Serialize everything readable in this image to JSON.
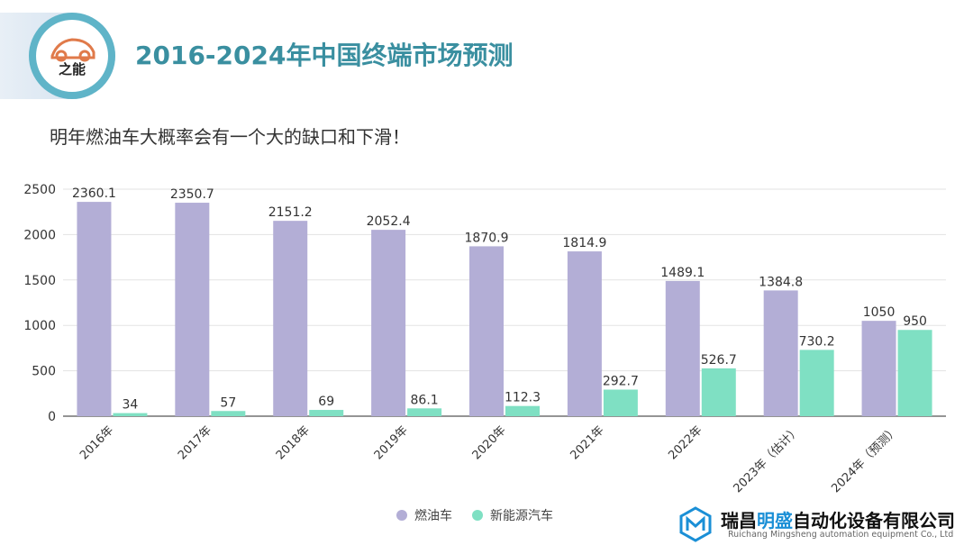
{
  "header": {
    "logo_text": "之能",
    "title": "2016-2024年中国终端市场预测"
  },
  "subtitle": "明年燃油车大概率会有一个大的缺口和下滑！",
  "colors": {
    "fuel": "#b3aed6",
    "nev": "#7fe0c3",
    "title": "#3a8fa0"
  },
  "chart_data": {
    "type": "bar",
    "categories": [
      "2016年",
      "2017年",
      "2018年",
      "2019年",
      "2020年",
      "2021年",
      "2022年",
      "2023年（估计）",
      "2024年（预测）"
    ],
    "series": [
      {
        "name": "燃油车",
        "values": [
          2360.1,
          2350.7,
          2151.2,
          2052.4,
          1870.9,
          1814.9,
          1489.1,
          1384.8,
          1050
        ]
      },
      {
        "name": "新能源汽车",
        "values": [
          34,
          57,
          69,
          86.1,
          112.3,
          292.7,
          526.7,
          730.2,
          950
        ]
      }
    ],
    "value_labels": [
      [
        "2360.1",
        "2350.7",
        "2151.2",
        "2052.4",
        "1870.9",
        "1814.9",
        "1489.1",
        "1384.8",
        "1050"
      ],
      [
        "34",
        "57",
        "69",
        "86.1",
        "112.3",
        "292.7",
        "526.7",
        "730.2",
        "950"
      ]
    ],
    "yticks": [
      "0",
      "500",
      "1000",
      "1500",
      "2000",
      "2500"
    ],
    "ylim": [
      0,
      2500
    ],
    "grid": true,
    "legend_position": "bottom"
  },
  "company": {
    "name_part1": "瑞昌",
    "name_highlight": "明盛",
    "name_part2": "自动化设备有限公司",
    "name_en": "Ruichang Mingsheng automation equipment Co., Ltd"
  }
}
